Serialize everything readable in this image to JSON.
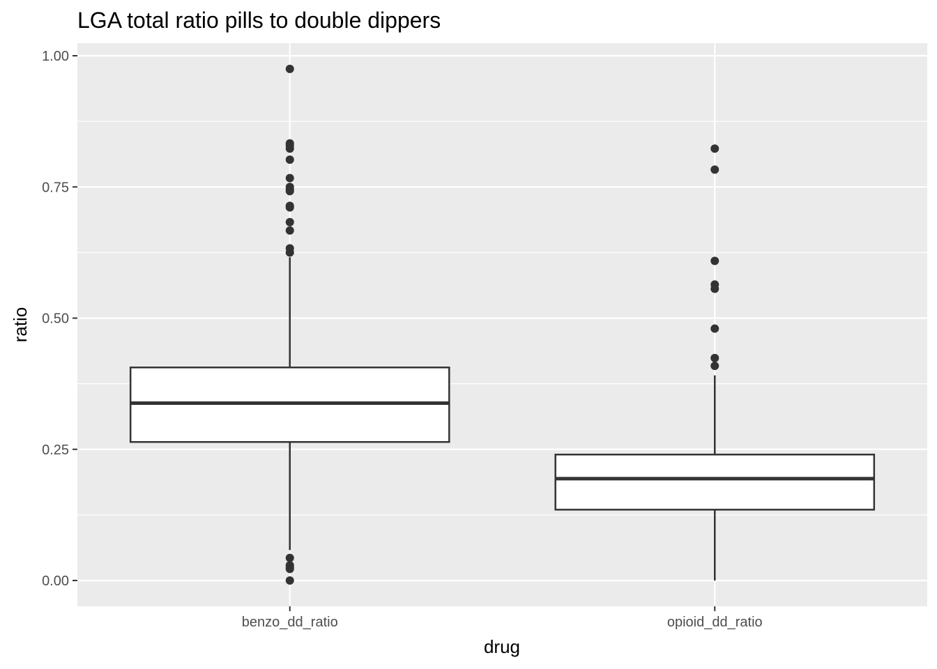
{
  "chart_data": {
    "type": "boxplot",
    "title": "LGA total ratio pills to double dippers",
    "xlabel": "drug",
    "ylabel": "ratio",
    "ylim": [
      -0.05,
      1.05
    ],
    "yticks": [
      0.0,
      0.25,
      0.5,
      0.75,
      1.0
    ],
    "ytick_labels": [
      "0.00",
      "0.25",
      "0.50",
      "0.75",
      "1.00"
    ],
    "categories": [
      "benzo_dd_ratio",
      "opioid_dd_ratio"
    ],
    "grid": true,
    "background": "#ebebeb",
    "boxes": [
      {
        "name": "benzo_dd_ratio",
        "whisker_low": 0.058,
        "q1": 0.264,
        "median": 0.338,
        "q3": 0.406,
        "whisker_high": 0.616,
        "outliers": [
          0.975,
          0.833,
          0.829,
          0.823,
          0.802,
          0.767,
          0.75,
          0.745,
          0.742,
          0.714,
          0.711,
          0.683,
          0.667,
          0.633,
          0.625,
          0.043,
          0.029,
          0.025,
          0.022,
          0.0
        ]
      },
      {
        "name": "opioid_dd_ratio",
        "whisker_low": 0.0,
        "q1": 0.135,
        "median": 0.194,
        "q3": 0.24,
        "whisker_high": 0.391,
        "outliers": [
          0.823,
          0.783,
          0.609,
          0.564,
          0.556,
          0.48,
          0.424,
          0.409
        ]
      }
    ]
  }
}
